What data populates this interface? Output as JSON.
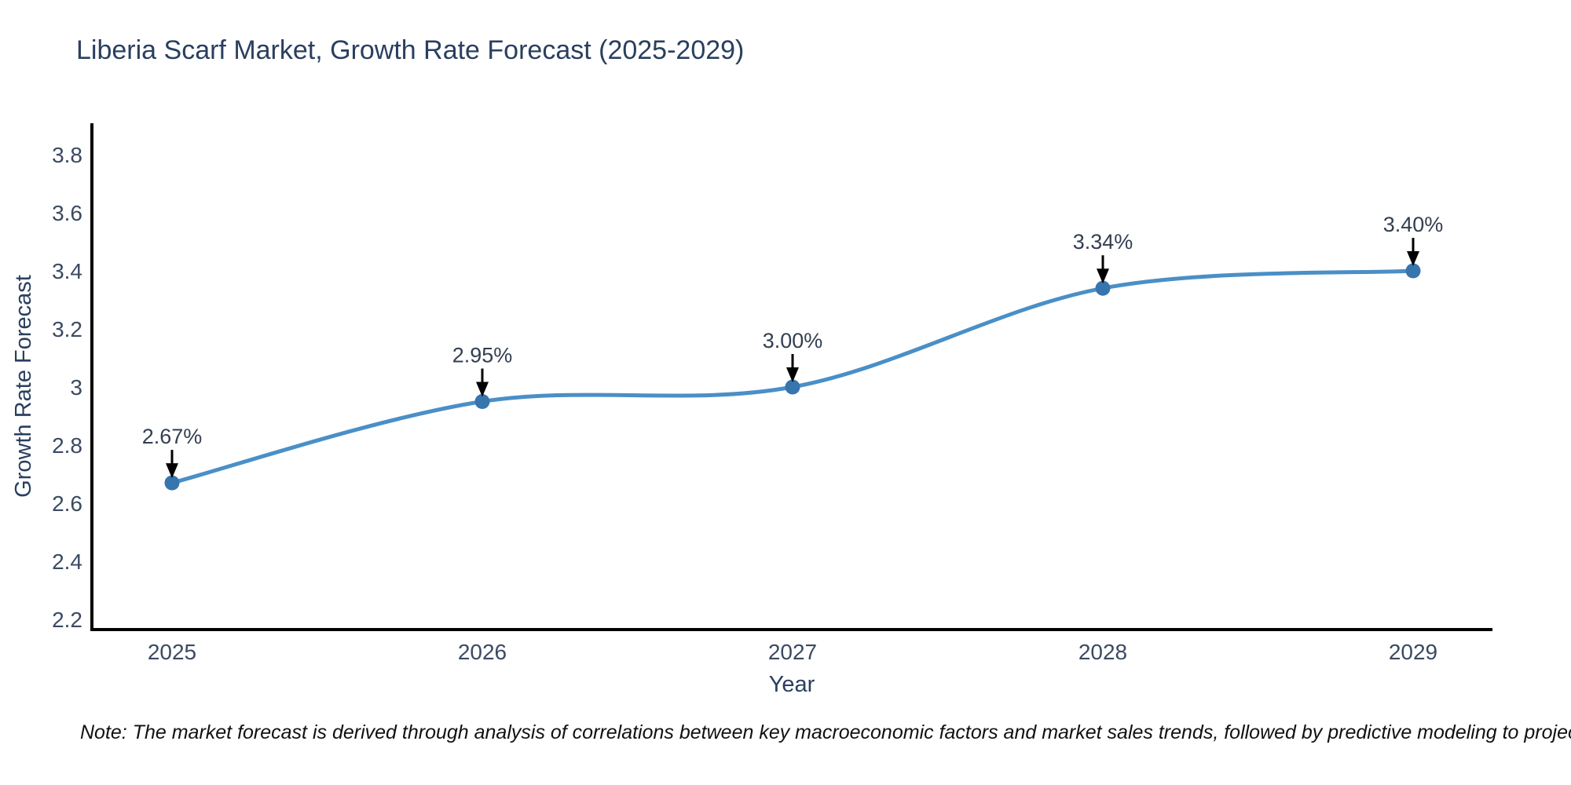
{
  "title": "Liberia Scarf Market, Growth Rate Forecast (2025-2029)",
  "note": "Note: The market forecast is derived through analysis of correlations between key macroeconomic factors and market sales trends, followed by predictive modeling to project future sales",
  "chart_data": {
    "type": "line",
    "title": "Liberia Scarf Market, Growth Rate Forecast (2025-2029)",
    "xlabel": "Year",
    "ylabel": "Growth Rate Forecast",
    "categories": [
      "2025",
      "2026",
      "2027",
      "2028",
      "2029"
    ],
    "series": [
      {
        "name": "Growth Rate Forecast",
        "values": [
          2.67,
          2.95,
          3.0,
          3.34,
          3.4
        ],
        "point_labels": [
          "2.67%",
          "2.95%",
          "3.00%",
          "3.34%",
          "3.40%"
        ]
      }
    ],
    "y_ticks": [
      2.2,
      2.4,
      2.6,
      2.8,
      3,
      3.2,
      3.4,
      3.6,
      3.8
    ],
    "y_tick_labels": [
      "2.2",
      "2.4",
      "2.6",
      "2.8",
      "3",
      "3.2",
      "3.4",
      "3.6",
      "3.8"
    ],
    "ylim": [
      2.16,
      3.92
    ],
    "line_shape": "spline",
    "grid": false,
    "legend": "none",
    "annotations_style": "black-arrow-pointing-down-to-marker",
    "colors": {
      "line": "#4a8fc7",
      "marker": "#3675ae",
      "axis": "#000000",
      "arrow": "#000000",
      "title_text": "#2a3f5f",
      "tick_text": "#3b4a63",
      "annotation_text": "#333f50",
      "note_text": "#111111",
      "background": "#ffffff"
    }
  }
}
